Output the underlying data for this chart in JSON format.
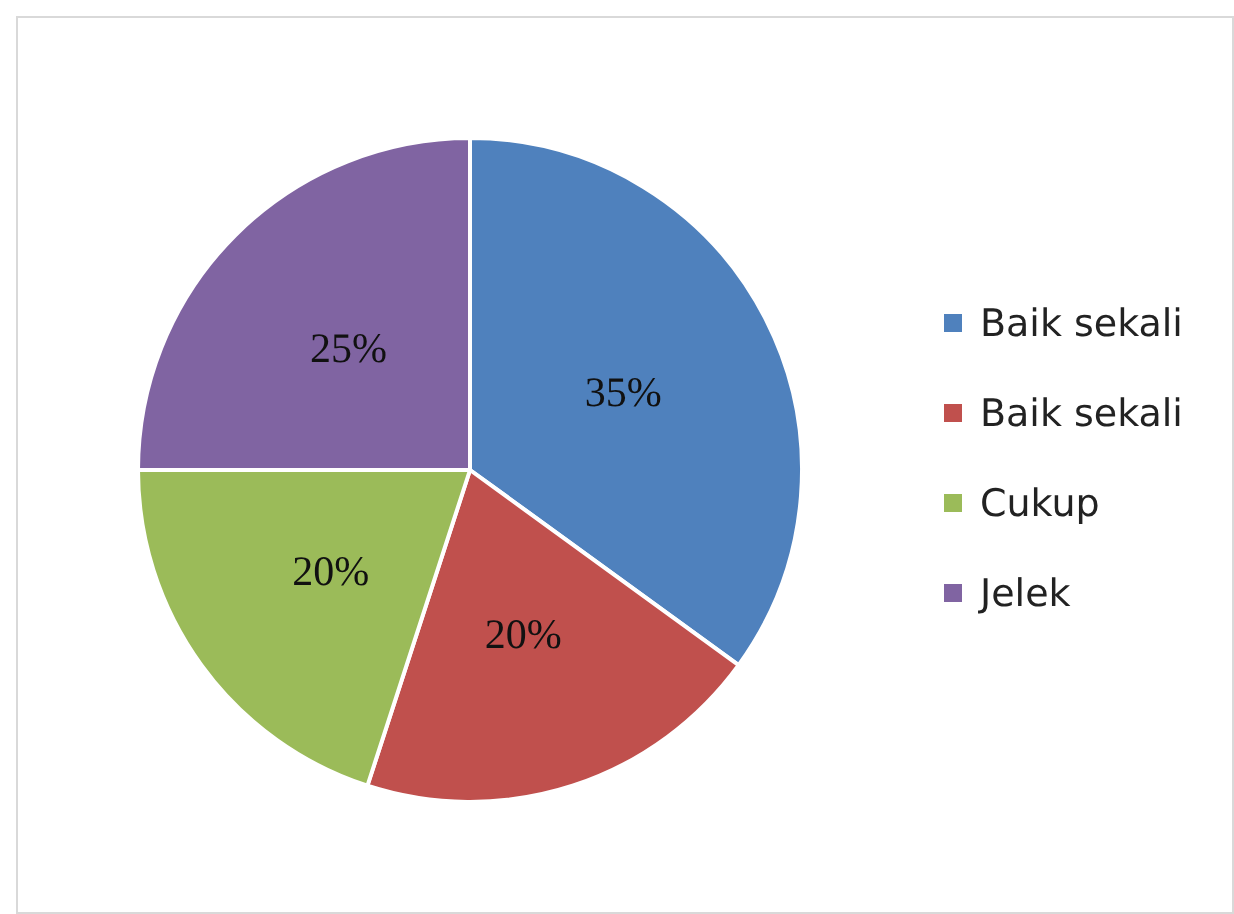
{
  "chart_data": {
    "type": "pie",
    "categories": [
      "Baik sekali",
      "Baik sekali",
      "Cukup",
      "Jelek"
    ],
    "values": [
      35,
      20,
      20,
      25
    ],
    "colors": [
      "#4f81bd",
      "#c0504d",
      "#9bbb59",
      "#8064a2"
    ],
    "value_labels": [
      "35%",
      "20%",
      "20%",
      "25%"
    ],
    "legend": "right"
  }
}
